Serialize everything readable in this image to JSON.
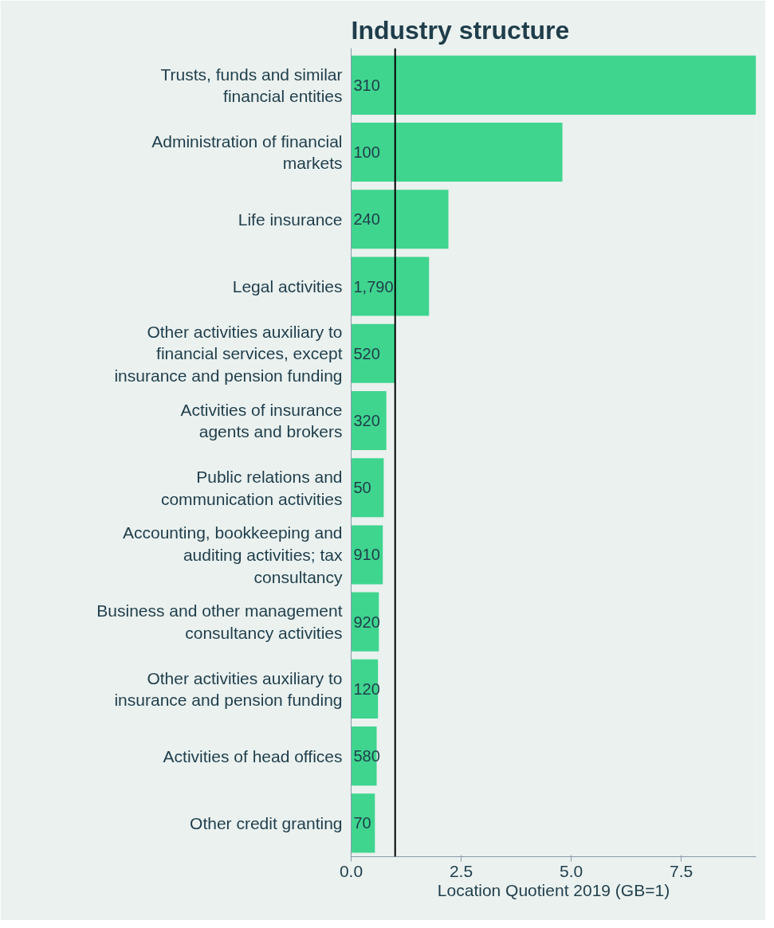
{
  "chart_data": {
    "type": "bar",
    "orientation": "horizontal",
    "title": "Industry structure",
    "xlabel": "Location Quotient 2019 (GB=1)",
    "categories": [
      "Trusts, funds and similar financial entities",
      "Administration of financial markets",
      "Life insurance",
      "Legal activities",
      "Other activities auxiliary to financial services, except insurance and pension funding",
      "Activities of insurance agents and brokers",
      "Public relations and communication activities",
      "Accounting, bookkeeping and auditing activities; tax consultancy",
      "Business and other management consultancy activities",
      "Other activities auxiliary to insurance and pension funding",
      "Activities of head offices",
      "Other credit granting"
    ],
    "values": [
      9.2,
      4.8,
      2.21,
      1.77,
      0.99,
      0.8,
      0.74,
      0.72,
      0.63,
      0.61,
      0.58,
      0.54
    ],
    "annotations": [
      {
        "text": "310",
        "y": "Trusts, funds and similar financial entities"
      },
      {
        "text": "100",
        "y": "Administration of financial markets"
      },
      {
        "text": "240",
        "y": "Life insurance"
      },
      {
        "text": "1,790",
        "y": "Legal activities"
      },
      {
        "text": "520",
        "y": "Other activities auxiliary to financial services, except insurance and pension funding"
      },
      {
        "text": "320",
        "y": "Activities of insurance agents and brokers"
      },
      {
        "text": "50",
        "y": "Public relations and communication activities"
      },
      {
        "text": "910",
        "y": "Accounting, bookkeeping and auditing activities; tax consultancy"
      },
      {
        "text": "920",
        "y": "Business and other management consultancy activities"
      },
      {
        "text": "120",
        "y": "Other activities auxiliary to insurance and pension funding"
      },
      {
        "text": "580",
        "y": "Activities of head offices"
      },
      {
        "text": "70",
        "y": "Other credit granting"
      }
    ],
    "color": "#3fd58f",
    "xlim": [
      0,
      9.2
    ],
    "xticks": [
      {
        "value": 0,
        "label": "0.0"
      },
      2.5,
      {
        "value": 5,
        "label": "5.0"
      },
      7.5
    ],
    "ref_lines": [
      {
        "axis": "x",
        "value": 1,
        "color": "#000000"
      }
    ],
    "grid": false
  }
}
